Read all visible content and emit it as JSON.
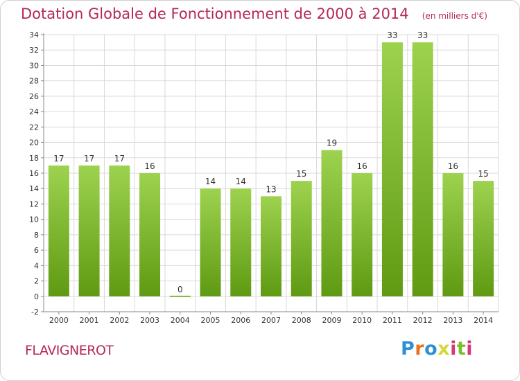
{
  "chart_data": {
    "type": "bar",
    "title": "Dotation Globale de Fonctionnement de 2000 à 2014",
    "subtitle": "(en milliers d'€)",
    "categories": [
      "2000",
      "2001",
      "2002",
      "2003",
      "2004",
      "2005",
      "2006",
      "2007",
      "2008",
      "2009",
      "2010",
      "2011",
      "2012",
      "2013",
      "2014"
    ],
    "values": [
      17,
      17,
      17,
      16,
      0,
      14,
      14,
      13,
      15,
      19,
      16,
      33,
      33,
      16,
      15
    ],
    "ylim": [
      -2,
      34
    ],
    "yticks": [
      -2,
      0,
      2,
      4,
      6,
      8,
      10,
      12,
      14,
      16,
      18,
      20,
      22,
      24,
      26,
      28,
      30,
      32,
      34
    ],
    "grid": true,
    "colors": {
      "bar_top": "#9dd24f",
      "bar_bottom": "#5f9a12",
      "grid": "#d9d9d9",
      "title": "#b5285a"
    }
  },
  "footer": {
    "commune": "FLAVIGNEROT",
    "logo": "Proxiti"
  }
}
